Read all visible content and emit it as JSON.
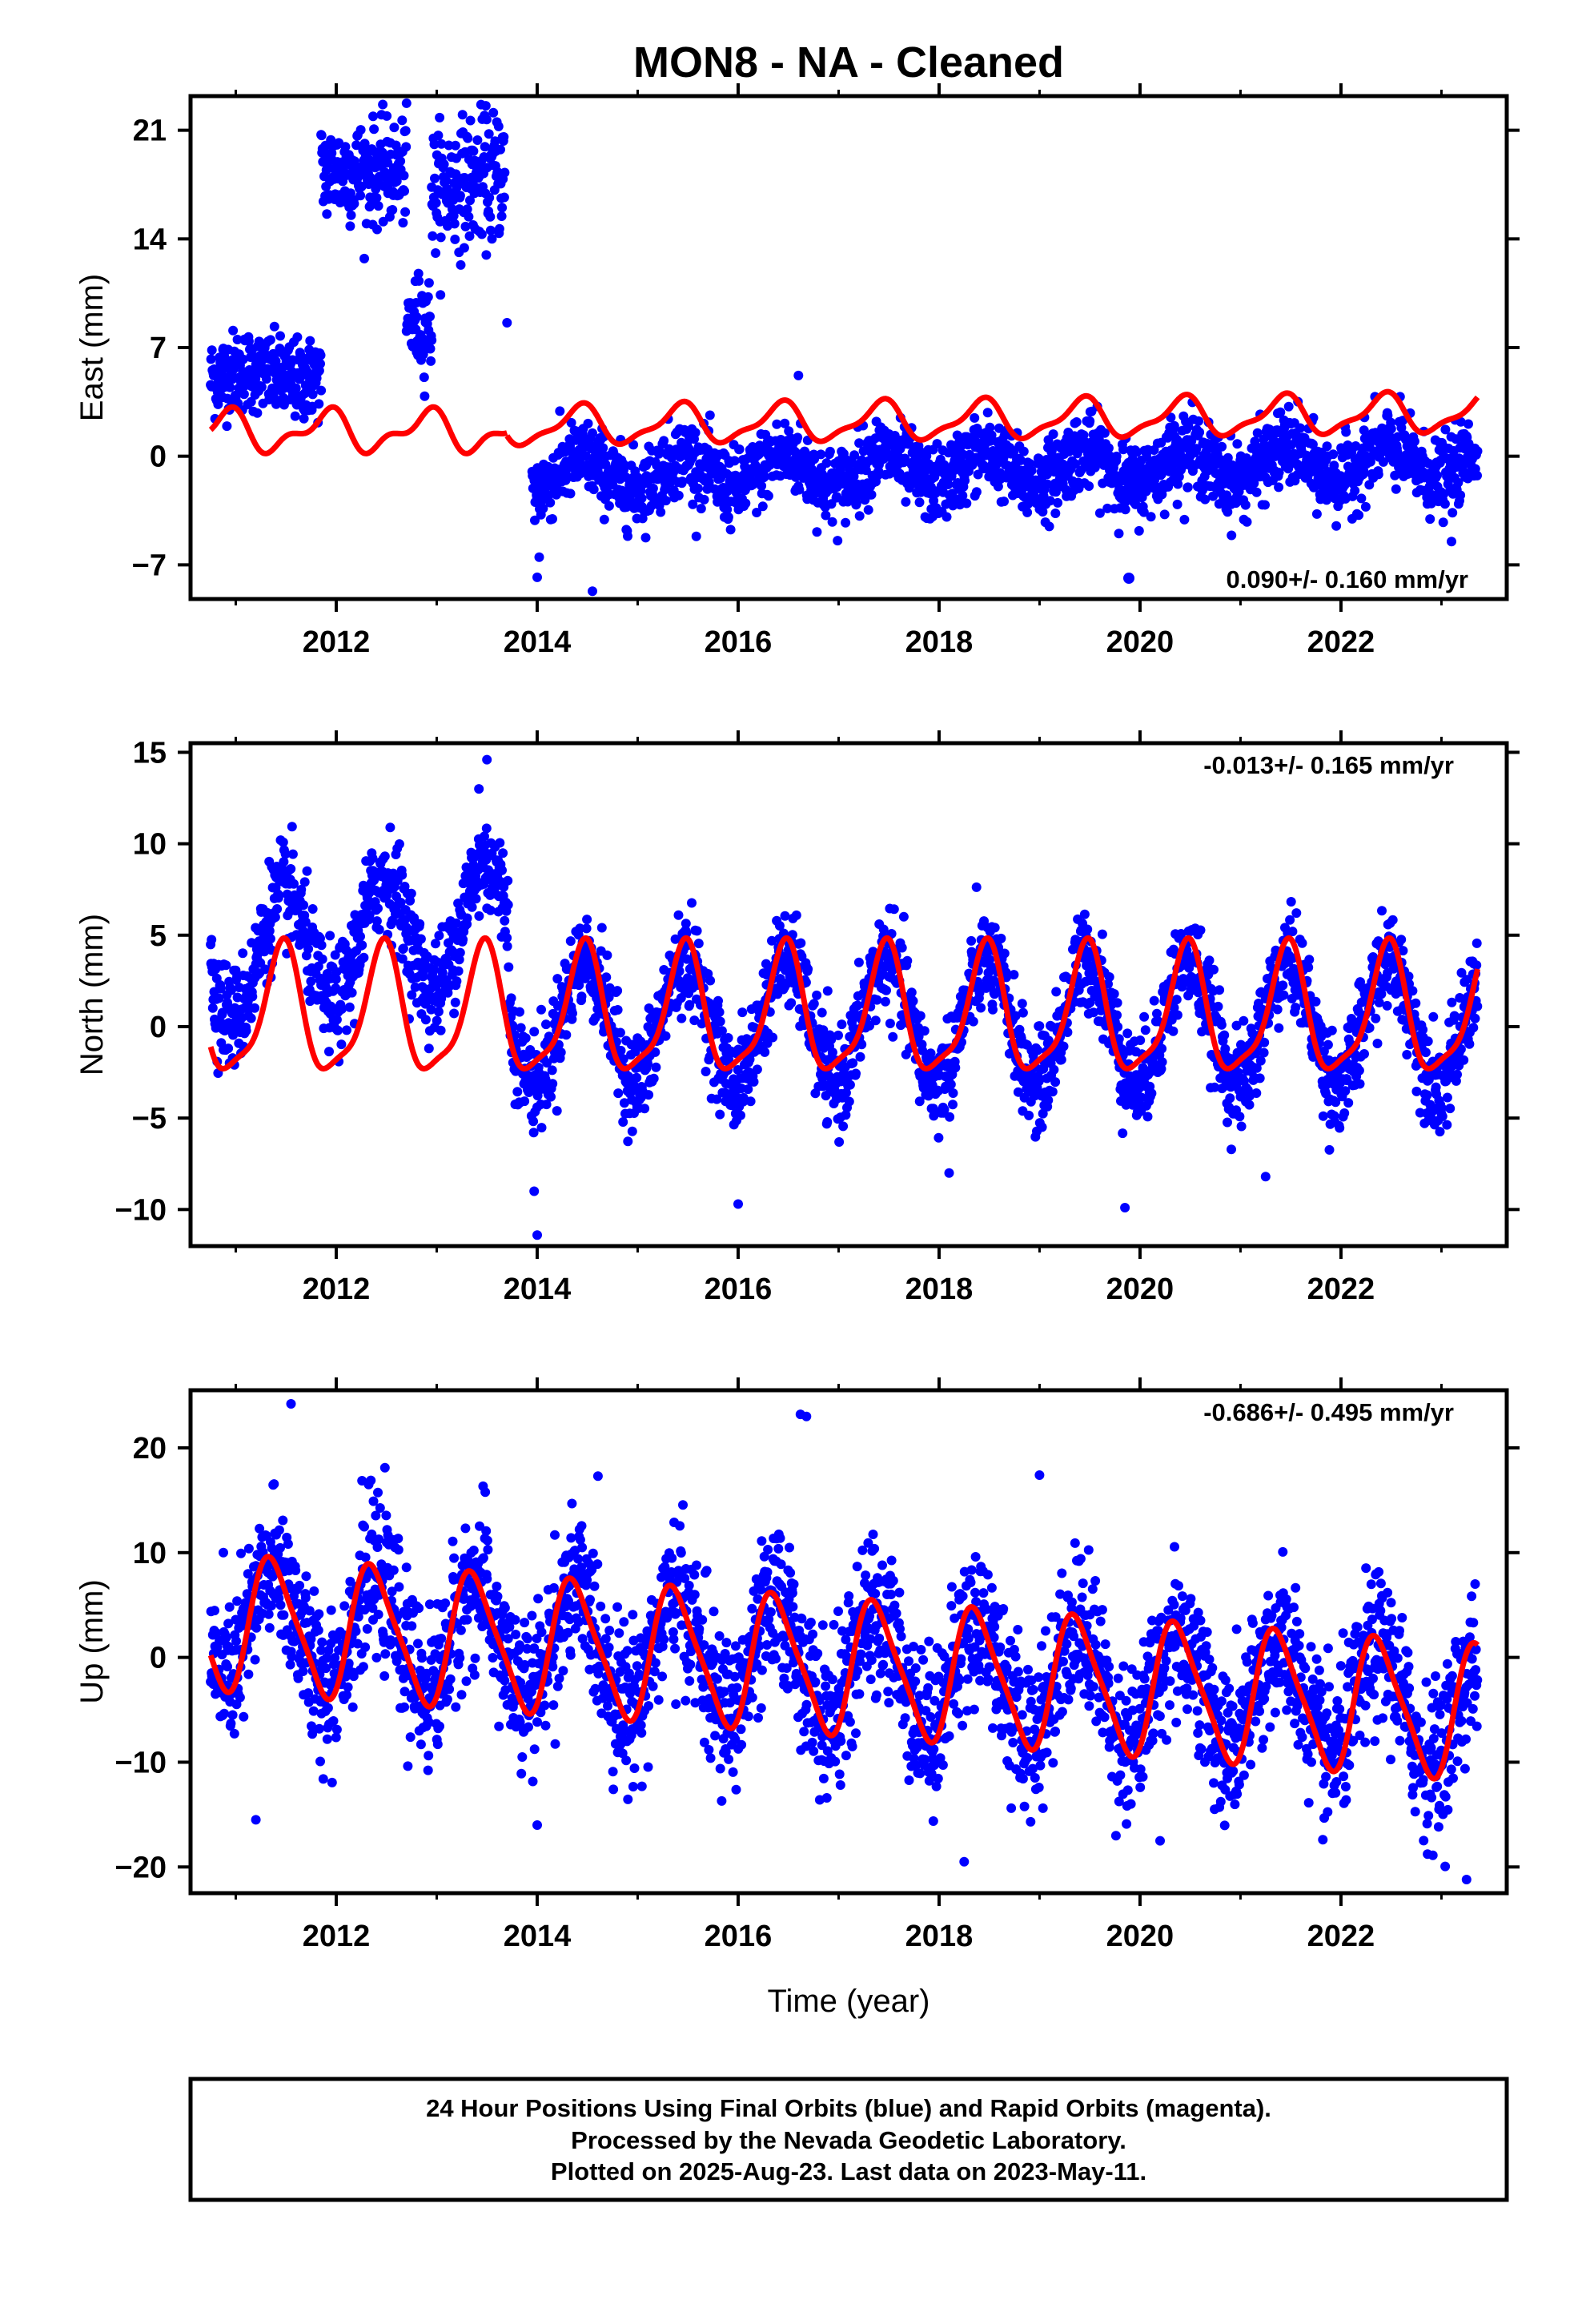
{
  "title": "MON8  - NA - Cleaned",
  "x_axis_label": "Time (year)",
  "footer": {
    "line1": "24 Hour Positions Using Final Orbits (blue) and Rapid Orbits (magenta).",
    "line2": "Processed by the Nevada Geodetic Laboratory.",
    "line3": "Plotted on 2025-Aug-23. Last data on 2023-May-11."
  },
  "colors": {
    "data_points": "#0000ff",
    "model_curve": "#ff0000",
    "frame": "#000000"
  },
  "chart_data": [
    {
      "type": "scatter",
      "name": "East",
      "ylabel": "East (mm)",
      "rate_text": "0.090+/- 0.160 mm/yr",
      "rate_legend_marker": true,
      "xlim": [
        2010.55,
        2023.65
      ],
      "ylim": [
        -9.2,
        23.2
      ],
      "xticks": [
        "2012",
        "2014",
        "2016",
        "2018",
        "2020",
        "2022"
      ],
      "yticks": [
        {
          "value": 21,
          "label": "21"
        },
        {
          "value": 14,
          "label": "14"
        },
        {
          "value": 7,
          "label": "7"
        },
        {
          "value": 0,
          "label": "0"
        },
        {
          "value": -7,
          "label": "−7"
        }
      ],
      "segments": [
        {
          "start": 2010.75,
          "end": 2011.85,
          "offset": 5.2,
          "slope": 0.0,
          "amp_cos": 0.3,
          "amp_sin": 0.2,
          "noise": 1.3
        },
        {
          "start": 2011.85,
          "end": 2012.7,
          "offset": 18.3,
          "slope": 0.0,
          "amp_cos": 0.0,
          "amp_sin": 0.0,
          "noise": 1.6
        },
        {
          "start": 2012.7,
          "end": 2012.95,
          "offset": 8.5,
          "slope": 0.0,
          "amp_cos": 0.0,
          "amp_sin": 0.0,
          "noise": 1.6
        },
        {
          "start": 2012.95,
          "end": 2013.68,
          "offset": 17.0,
          "slope": 2.0,
          "amp_cos": 0.0,
          "amp_sin": 0.0,
          "noise": 2.0
        },
        {
          "start": 2013.95,
          "end": 2023.36,
          "offset": -1.2,
          "slope": 0.09,
          "amp_cos": -1.0,
          "amp_sin": 0.3,
          "noise": 1.2
        }
      ],
      "outliers": [
        {
          "x": 2014.0,
          "y": -7.8
        },
        {
          "x": 2014.02,
          "y": -6.5
        },
        {
          "x": 2014.55,
          "y": -8.7
        },
        {
          "x": 2012.8,
          "y": 6.7
        },
        {
          "x": 2013.55,
          "y": 14.0
        },
        {
          "x": 2013.7,
          "y": 8.6
        },
        {
          "x": 2016.6,
          "y": 5.2
        },
        {
          "x": 2023.1,
          "y": -5.5
        }
      ],
      "model": {
        "knots": [
          {
            "start": 2010.75,
            "end": 2013.7,
            "offset": 1.6,
            "slope": 0.0,
            "amp_cos": 0.9,
            "amp_sin": -0.7,
            "amp2_cos": 0.6
          },
          {
            "start": 2013.7,
            "end": 2023.36,
            "offset": 1.9,
            "slope": 0.09,
            "amp_cos": -1.0,
            "amp_sin": 0.6,
            "amp2_cos": 0.4
          }
        ]
      }
    },
    {
      "type": "scatter",
      "name": "North",
      "ylabel": "North (mm)",
      "rate_text": "-0.013+/- 0.165 mm/yr",
      "rate_legend_marker": false,
      "xlim": [
        2010.55,
        2023.65
      ],
      "ylim": [
        -12.0,
        15.5
      ],
      "xticks": [
        "2012",
        "2014",
        "2016",
        "2018",
        "2020",
        "2022"
      ],
      "yticks": [
        {
          "value": 15,
          "label": "15"
        },
        {
          "value": 10,
          "label": "10"
        },
        {
          "value": 5,
          "label": "5"
        },
        {
          "value": 0,
          "label": "0"
        },
        {
          "value": -5,
          "label": "−5"
        },
        {
          "value": -10,
          "label": "−10"
        }
      ],
      "segments": [
        {
          "start": 2010.75,
          "end": 2013.72,
          "offset": 3.5,
          "slope": 0.8,
          "amp_cos": -3.2,
          "amp_sin": 0.5,
          "noise": 1.4
        },
        {
          "start": 2013.72,
          "end": 2023.36,
          "offset": 0.3,
          "slope": -0.013,
          "amp_cos": -3.3,
          "amp_sin": 0.6,
          "noise": 1.3
        }
      ],
      "outliers": [
        {
          "x": 2013.5,
          "y": 14.6
        },
        {
          "x": 2013.42,
          "y": 13.0
        },
        {
          "x": 2014.0,
          "y": -11.4
        },
        {
          "x": 2013.97,
          "y": -9.0
        },
        {
          "x": 2016.0,
          "y": -9.7
        },
        {
          "x": 2019.85,
          "y": -9.9
        },
        {
          "x": 2021.25,
          "y": -8.2
        },
        {
          "x": 2018.1,
          "y": -8.0
        }
      ],
      "model": {
        "knots": [
          {
            "start": 2010.75,
            "end": 2023.36,
            "offset": 0.6,
            "slope": 0.0,
            "amp_cos": -3.3,
            "amp_sin": 0.8,
            "amp2_cos": 0.9
          }
        ]
      }
    },
    {
      "type": "scatter",
      "name": "Up",
      "ylabel": "Up (mm)",
      "rate_text": "-0.686+/- 0.495 mm/yr",
      "rate_legend_marker": false,
      "xlim": [
        2010.55,
        2023.65
      ],
      "ylim": [
        -22.5,
        25.5
      ],
      "xticks": [
        "2012",
        "2014",
        "2016",
        "2018",
        "2020",
        "2022"
      ],
      "yticks": [
        {
          "value": 20,
          "label": "20"
        },
        {
          "value": 10,
          "label": "10"
        },
        {
          "value": 0,
          "label": "0"
        },
        {
          "value": -10,
          "label": "−10"
        },
        {
          "value": -20,
          "label": "−20"
        }
      ],
      "segments": [
        {
          "start": 2010.75,
          "end": 2023.36,
          "offset": 3.5,
          "slope": -0.686,
          "amp_cos": -4.0,
          "amp_sin": 3.5,
          "noise": 3.6
        }
      ],
      "outliers": [
        {
          "x": 2011.55,
          "y": 24.2
        },
        {
          "x": 2016.62,
          "y": 23.2
        },
        {
          "x": 2016.68,
          "y": 23.0
        },
        {
          "x": 2023.25,
          "y": -21.2
        },
        {
          "x": 2018.25,
          "y": -19.5
        },
        {
          "x": 2011.2,
          "y": -15.5
        },
        {
          "x": 2014.0,
          "y": -16.0
        },
        {
          "x": 2020.2,
          "y": -17.5
        },
        {
          "x": 2019.0,
          "y": 17.4
        }
      ],
      "model": {
        "knots": [
          {
            "start": 2010.75,
            "end": 2023.36,
            "offset": 3.4,
            "slope": -0.686,
            "amp_cos": -4.4,
            "amp_sin": 4.4,
            "amp2_cos": -1.2
          }
        ]
      }
    }
  ]
}
